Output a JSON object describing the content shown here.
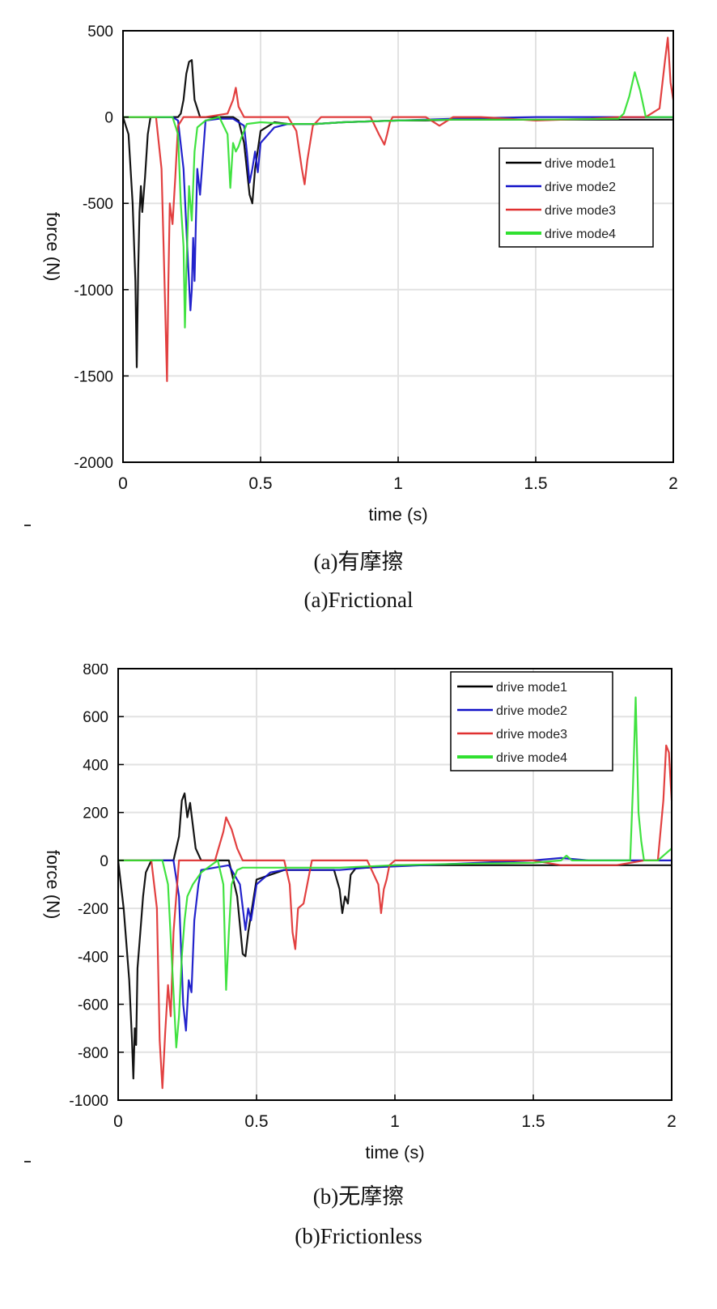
{
  "captions": {
    "a_cn": "(a)有摩擦",
    "a_en": "(a)Frictional",
    "b_cn": "(b)无摩擦",
    "b_en": "(b)Frictionless"
  },
  "colors": {
    "mode1": "#000000",
    "mode2": "#1010c8",
    "mode3": "#e03030",
    "mode4": "#30e030",
    "grid": "#e2e2e2",
    "axis": "#000000"
  },
  "chart_data": [
    {
      "id": "a",
      "type": "line",
      "title": "",
      "xlabel": "time (s)",
      "ylabel": "force (N)",
      "xlim": [
        0,
        2
      ],
      "ylim": [
        -2000,
        500
      ],
      "xticks": [
        0,
        0.5,
        1,
        1.5,
        2
      ],
      "xtick_labels": [
        "0",
        "0.5",
        "1",
        "1.5",
        "2"
      ],
      "yticks": [
        500,
        0,
        -500,
        -1000,
        -1500,
        -2000
      ],
      "ytick_labels": [
        "500",
        "0",
        "-500",
        "-1000",
        "-1500",
        "-2000"
      ],
      "grid": true,
      "legend_position": "right-middle",
      "series": [
        {
          "name": "drive mode1",
          "color_key": "mode1",
          "x": [
            0,
            0.02,
            0.035,
            0.045,
            0.05,
            0.055,
            0.06,
            0.065,
            0.07,
            0.08,
            0.09,
            0.1,
            0.12,
            0.15,
            0.18,
            0.2,
            0.21,
            0.22,
            0.23,
            0.24,
            0.25,
            0.26,
            0.28,
            0.3,
            0.35,
            0.4,
            0.42,
            0.44,
            0.45,
            0.46,
            0.47,
            0.48,
            0.5,
            0.55,
            0.6,
            0.7,
            0.8,
            0.9,
            1.0,
            1.1,
            1.2,
            1.3,
            1.4,
            1.5,
            1.6,
            1.7,
            1.8,
            1.9,
            2.0
          ],
          "y": [
            0,
            -100,
            -500,
            -950,
            -1450,
            -900,
            -550,
            -400,
            -550,
            -350,
            -100,
            0,
            0,
            0,
            0,
            0,
            20,
            100,
            250,
            320,
            330,
            100,
            0,
            0,
            0,
            0,
            -20,
            -150,
            -300,
            -450,
            -500,
            -300,
            -80,
            -30,
            -40,
            -40,
            -30,
            -25,
            -20,
            -20,
            -15,
            -15,
            -15,
            -15,
            -15,
            -15,
            -15,
            -15,
            -15
          ]
        },
        {
          "name": "drive mode2",
          "color_key": "mode2",
          "x": [
            0,
            0.1,
            0.18,
            0.2,
            0.22,
            0.235,
            0.245,
            0.25,
            0.255,
            0.26,
            0.265,
            0.27,
            0.28,
            0.3,
            0.35,
            0.4,
            0.44,
            0.45,
            0.46,
            0.47,
            0.48,
            0.49,
            0.5,
            0.55,
            0.6,
            0.7,
            0.8,
            0.9,
            1.0,
            1.2,
            1.5,
            1.8,
            2.0
          ],
          "y": [
            0,
            0,
            0,
            -20,
            -300,
            -800,
            -1120,
            -1000,
            -700,
            -950,
            -600,
            -300,
            -450,
            -20,
            -10,
            -10,
            -50,
            -200,
            -380,
            -300,
            -200,
            -320,
            -150,
            -60,
            -40,
            -40,
            -30,
            -25,
            -20,
            -10,
            0,
            0,
            0
          ]
        },
        {
          "name": "drive mode3",
          "color_key": "mode3",
          "x": [
            0,
            0.12,
            0.14,
            0.15,
            0.16,
            0.165,
            0.17,
            0.18,
            0.19,
            0.2,
            0.22,
            0.3,
            0.38,
            0.4,
            0.41,
            0.42,
            0.44,
            0.46,
            0.5,
            0.6,
            0.63,
            0.65,
            0.66,
            0.67,
            0.69,
            0.72,
            0.8,
            0.9,
            0.93,
            0.95,
            0.96,
            0.97,
            0.98,
            1.0,
            1.1,
            1.15,
            1.2,
            1.3,
            1.5,
            1.7,
            1.8,
            1.85,
            1.9,
            1.95,
            1.97,
            1.98,
            1.99,
            2.0
          ],
          "y": [
            0,
            0,
            -300,
            -900,
            -1530,
            -950,
            -500,
            -620,
            -350,
            -50,
            0,
            0,
            20,
            100,
            170,
            60,
            0,
            0,
            0,
            0,
            -80,
            -300,
            -390,
            -250,
            -50,
            0,
            0,
            0,
            -100,
            -160,
            -100,
            -30,
            0,
            0,
            0,
            -50,
            0,
            0,
            -20,
            -10,
            0,
            0,
            0,
            50,
            330,
            460,
            200,
            100
          ]
        },
        {
          "name": "drive mode4",
          "color_key": "mode4",
          "x": [
            0,
            0.18,
            0.2,
            0.21,
            0.22,
            0.225,
            0.23,
            0.24,
            0.25,
            0.26,
            0.27,
            0.3,
            0.35,
            0.38,
            0.39,
            0.4,
            0.41,
            0.42,
            0.43,
            0.45,
            0.5,
            0.6,
            0.7,
            0.8,
            0.9,
            1.0,
            1.2,
            1.5,
            1.8,
            1.82,
            1.84,
            1.86,
            1.88,
            1.9,
            1.95,
            2.0
          ],
          "y": [
            0,
            0,
            -100,
            -500,
            -750,
            -1220,
            -900,
            -400,
            -600,
            -200,
            -60,
            -20,
            0,
            -100,
            -410,
            -150,
            -200,
            -170,
            -120,
            -40,
            -30,
            -40,
            -40,
            -30,
            -25,
            -20,
            -15,
            -15,
            -10,
            20,
            120,
            260,
            150,
            0,
            0,
            0
          ]
        }
      ]
    },
    {
      "id": "b",
      "type": "line",
      "title": "",
      "xlabel": "time (s)",
      "ylabel": "force (N)",
      "xlim": [
        0,
        2
      ],
      "ylim": [
        -1000,
        800
      ],
      "xticks": [
        0,
        0.5,
        1,
        1.5,
        2
      ],
      "xtick_labels": [
        "0",
        "0.5",
        "1",
        "1.5",
        "2"
      ],
      "yticks": [
        800,
        600,
        400,
        200,
        0,
        -200,
        -400,
        -600,
        -800,
        -1000
      ],
      "ytick_labels": [
        "800",
        "600",
        "400",
        "200",
        "0",
        "-200",
        "-400",
        "-600",
        "-800",
        "-1000"
      ],
      "grid": true,
      "legend_position": "top-right",
      "series": [
        {
          "name": "drive mode1",
          "color_key": "mode1",
          "x": [
            0,
            0.02,
            0.04,
            0.05,
            0.055,
            0.06,
            0.065,
            0.07,
            0.08,
            0.09,
            0.1,
            0.12,
            0.2,
            0.22,
            0.23,
            0.24,
            0.25,
            0.26,
            0.28,
            0.3,
            0.4,
            0.43,
            0.45,
            0.46,
            0.47,
            0.5,
            0.6,
            0.7,
            0.78,
            0.8,
            0.81,
            0.82,
            0.83,
            0.84,
            0.86,
            0.9,
            1.0,
            1.2,
            1.5,
            1.8,
            2.0
          ],
          "y": [
            0,
            -200,
            -500,
            -750,
            -910,
            -700,
            -770,
            -450,
            -300,
            -150,
            -50,
            0,
            0,
            100,
            250,
            280,
            180,
            240,
            50,
            0,
            0,
            -150,
            -390,
            -400,
            -300,
            -80,
            -40,
            -40,
            -40,
            -120,
            -220,
            -150,
            -180,
            -60,
            -30,
            -30,
            -20,
            -20,
            -20,
            -20,
            -20
          ]
        },
        {
          "name": "drive mode2",
          "color_key": "mode2",
          "x": [
            0,
            0.15,
            0.2,
            0.22,
            0.235,
            0.245,
            0.255,
            0.265,
            0.275,
            0.29,
            0.3,
            0.4,
            0.44,
            0.46,
            0.47,
            0.48,
            0.5,
            0.55,
            0.6,
            0.7,
            0.8,
            0.9,
            1.0,
            1.2,
            1.5,
            1.6,
            1.7,
            1.8,
            2.0
          ],
          "y": [
            0,
            0,
            0,
            -150,
            -600,
            -710,
            -500,
            -550,
            -250,
            -100,
            -40,
            -20,
            -100,
            -290,
            -200,
            -250,
            -100,
            -50,
            -40,
            -40,
            -40,
            -30,
            -25,
            -15,
            0,
            10,
            0,
            0,
            0
          ]
        },
        {
          "name": "drive mode3",
          "color_key": "mode3",
          "x": [
            0,
            0.12,
            0.14,
            0.15,
            0.16,
            0.17,
            0.18,
            0.19,
            0.2,
            0.22,
            0.35,
            0.38,
            0.39,
            0.41,
            0.43,
            0.45,
            0.6,
            0.62,
            0.63,
            0.64,
            0.65,
            0.67,
            0.7,
            0.9,
            0.94,
            0.95,
            0.96,
            0.97,
            0.98,
            1.0,
            1.2,
            1.5,
            1.6,
            1.7,
            1.8,
            1.9,
            1.95,
            1.97,
            1.98,
            1.99,
            2.0
          ],
          "y": [
            0,
            0,
            -200,
            -750,
            -950,
            -720,
            -520,
            -650,
            -300,
            0,
            0,
            120,
            180,
            130,
            50,
            0,
            0,
            -100,
            -300,
            -370,
            -200,
            -180,
            0,
            0,
            -100,
            -220,
            -120,
            -80,
            -20,
            0,
            0,
            0,
            -20,
            -20,
            -20,
            0,
            0,
            250,
            480,
            450,
            250
          ]
        },
        {
          "name": "drive mode4",
          "color_key": "mode4",
          "x": [
            0,
            0.16,
            0.18,
            0.2,
            0.21,
            0.22,
            0.23,
            0.24,
            0.25,
            0.27,
            0.3,
            0.36,
            0.38,
            0.39,
            0.4,
            0.41,
            0.43,
            0.45,
            0.5,
            0.6,
            0.7,
            0.8,
            0.9,
            1.0,
            1.2,
            1.5,
            1.6,
            1.62,
            1.64,
            1.7,
            1.8,
            1.85,
            1.86,
            1.87,
            1.88,
            1.89,
            1.9,
            1.95,
            2.0
          ],
          "y": [
            0,
            0,
            -100,
            -550,
            -780,
            -650,
            -400,
            -250,
            -150,
            -100,
            -50,
            0,
            -100,
            -540,
            -300,
            -100,
            -40,
            -30,
            -30,
            -30,
            -30,
            -30,
            -25,
            -20,
            -15,
            -10,
            0,
            20,
            0,
            0,
            0,
            0,
            300,
            680,
            200,
            80,
            0,
            0,
            50
          ]
        }
      ]
    }
  ]
}
